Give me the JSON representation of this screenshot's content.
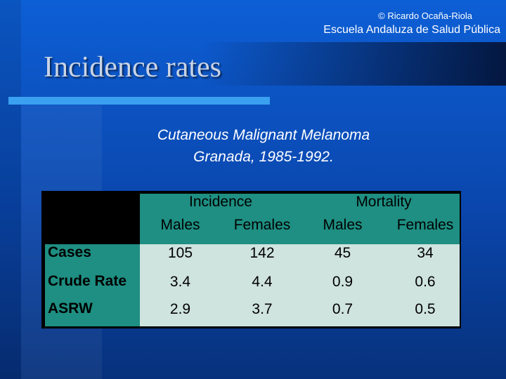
{
  "header": {
    "copyright": "© Ricardo Ocaña-Riola",
    "institution": "Escuela Andaluza de Salud Pública"
  },
  "slide": {
    "title": "Incidence rates",
    "subtitle_line1": "Cutaneous Malignant Melanoma",
    "subtitle_line2": "Granada, 1985-1992."
  },
  "table": {
    "groups": [
      "Incidence",
      "Mortality"
    ],
    "subheaders": [
      "Males",
      "Females",
      "Males",
      "Females"
    ],
    "rows": [
      {
        "label": "Cases",
        "values": [
          "105",
          "142",
          "45",
          "34"
        ]
      },
      {
        "label": "Crude Rate",
        "values": [
          "3.4",
          "4.4",
          "0.9",
          "0.6"
        ]
      },
      {
        "label": "ASRW",
        "values": [
          "2.9",
          "3.7",
          "0.7",
          "0.5"
        ]
      }
    ]
  },
  "colors": {
    "background": "#0a46ac",
    "accent_rule": "#3aa0f0",
    "table_header": "#1e8f82",
    "table_body": "#cfe3df"
  }
}
